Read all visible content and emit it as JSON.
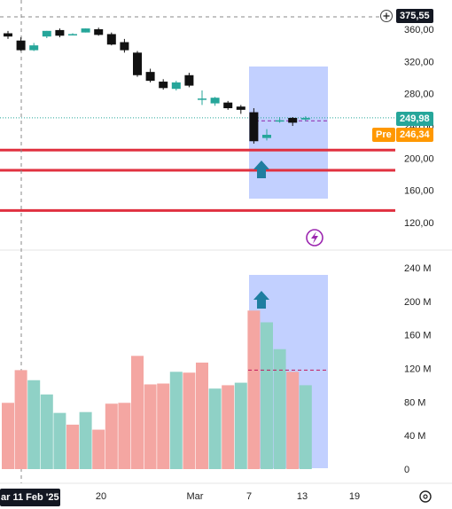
{
  "price_pane": {
    "y_ticks": [
      "360,00",
      "320,00",
      "280,00",
      "240,00",
      "200,00",
      "160,00",
      "120,00"
    ],
    "crosshair_price": "375,55",
    "last_price": "249,98",
    "premarket_label": "Pre",
    "premarket_price": "246,34",
    "horizontal_levels": [
      210,
      185,
      135
    ],
    "zap_icon": "lightning-bolt-icon"
  },
  "volume_pane": {
    "y_ticks": [
      "240 M",
      "200 M",
      "160 M",
      "120 M",
      "80 M",
      "40 M",
      "0"
    ],
    "average_line": 118
  },
  "time_axis": {
    "labels": [
      {
        "text": "ar 11 Feb '25",
        "highlight": true
      },
      {
        "text": "20",
        "highlight": false
      },
      {
        "text": "Mar",
        "highlight": false
      },
      {
        "text": "7",
        "highlight": false
      },
      {
        "text": "13",
        "highlight": false
      },
      {
        "text": "19",
        "highlight": false
      }
    ],
    "settings_icon": "gear-icon"
  },
  "colors": {
    "up": "#26a69a",
    "down": "#111111",
    "vol_up": "#8fd1c6",
    "vol_down": "#f4a6a2",
    "level": "#e0303f",
    "highlight_box": "rgba(120,150,255,0.45)",
    "arrow": "#1f7ea0"
  },
  "chart_data": {
    "type": "candlestick",
    "price_range": [
      100,
      385
    ],
    "volume_range": [
      0,
      260
    ],
    "candles": [
      {
        "o": 355,
        "h": 358,
        "l": 348,
        "c": 351
      },
      {
        "o": 346,
        "h": 350,
        "l": 333,
        "c": 334
      },
      {
        "o": 334,
        "h": 343,
        "l": 333,
        "c": 340
      },
      {
        "o": 351,
        "h": 358,
        "l": 349,
        "c": 358
      },
      {
        "o": 359,
        "h": 361,
        "l": 350,
        "c": 352
      },
      {
        "o": 354,
        "h": 355,
        "l": 353,
        "c": 354
      },
      {
        "o": 356,
        "h": 361,
        "l": 356,
        "c": 361
      },
      {
        "o": 360,
        "h": 362,
        "l": 352,
        "c": 353
      },
      {
        "o": 354,
        "h": 356,
        "l": 340,
        "c": 341
      },
      {
        "o": 344,
        "h": 348,
        "l": 331,
        "c": 334
      },
      {
        "o": 331,
        "h": 333,
        "l": 301,
        "c": 303
      },
      {
        "o": 307,
        "h": 311,
        "l": 294,
        "c": 296
      },
      {
        "o": 295,
        "h": 298,
        "l": 285,
        "c": 287
      },
      {
        "o": 286,
        "h": 296,
        "l": 284,
        "c": 294
      },
      {
        "o": 303,
        "h": 306,
        "l": 288,
        "c": 290
      },
      {
        "o": 274,
        "h": 284,
        "l": 266,
        "c": 274
      },
      {
        "o": 268,
        "h": 276,
        "l": 265,
        "c": 275
      },
      {
        "o": 269,
        "h": 271,
        "l": 260,
        "c": 262
      },
      {
        "o": 264,
        "h": 266,
        "l": 255,
        "c": 260
      },
      {
        "o": 257,
        "h": 262,
        "l": 218,
        "c": 221
      },
      {
        "o": 225,
        "h": 236,
        "l": 222,
        "c": 229
      },
      {
        "o": 246,
        "h": 251,
        "l": 244,
        "c": 247
      },
      {
        "o": 250,
        "h": 251,
        "l": 240,
        "c": 244
      },
      {
        "o": 248,
        "h": 252,
        "l": 246,
        "c": 250
      }
    ],
    "volumes": [
      {
        "v": 79,
        "up": false
      },
      {
        "v": 118,
        "up": false
      },
      {
        "v": 106,
        "up": true
      },
      {
        "v": 89,
        "up": true
      },
      {
        "v": 67,
        "up": true
      },
      {
        "v": 53,
        "up": false
      },
      {
        "v": 68,
        "up": true
      },
      {
        "v": 47,
        "up": false
      },
      {
        "v": 78,
        "up": false
      },
      {
        "v": 79,
        "up": false
      },
      {
        "v": 135,
        "up": false
      },
      {
        "v": 101,
        "up": false
      },
      {
        "v": 102,
        "up": false
      },
      {
        "v": 116,
        "up": true
      },
      {
        "v": 115,
        "up": false
      },
      {
        "v": 127,
        "up": false
      },
      {
        "v": 96,
        "up": true
      },
      {
        "v": 100,
        "up": false
      },
      {
        "v": 103,
        "up": true
      },
      {
        "v": 189,
        "up": false
      },
      {
        "v": 175,
        "up": true
      },
      {
        "v": 143,
        "up": true
      },
      {
        "v": 116,
        "up": false
      },
      {
        "v": 100,
        "up": true
      }
    ]
  }
}
